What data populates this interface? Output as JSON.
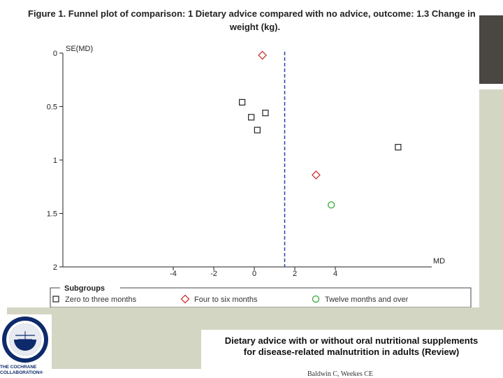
{
  "figure_title": {
    "line1": "Figure 1.   Funnel plot of comparison: 1 Dietary advice compared with no advice, outcome: 1.3 Change in",
    "line2": "weight (kg)."
  },
  "review": {
    "title_line1": "Dietary advice with or without oral nutritional supplements",
    "title_line2": "for disease-related malnutrition in adults (Review)",
    "authors": "Baldwin C, Weekes CE"
  },
  "logo": {
    "line1": "THE COCHRANE",
    "line2": "COLLABORATION®"
  },
  "colors": {
    "square": "#222222",
    "diamond": "#cc3333",
    "circle": "#33aa33",
    "dashed_line": "#2b3fb0",
    "sage": "#d4d6c4"
  },
  "chart_data": {
    "type": "scatter",
    "title": "",
    "xlabel": "MD",
    "ylabel": "SE(MD)",
    "x_ticks": [
      -4,
      -2,
      0,
      2,
      4
    ],
    "y_ticks": [
      0,
      0.5,
      1,
      1.5,
      2
    ],
    "xlim": [
      -10,
      9.5
    ],
    "ylim": [
      0,
      2
    ],
    "y_inverted": true,
    "pooled_estimate_md": 1.5,
    "legend": {
      "title": "Subgroups",
      "position": "bottom"
    },
    "series": [
      {
        "name": "Zero to three months",
        "marker": "square",
        "points": [
          {
            "x": -0.6,
            "y": 0.46
          },
          {
            "x": -0.15,
            "y": 0.6
          },
          {
            "x": 0.55,
            "y": 0.56
          },
          {
            "x": 0.15,
            "y": 0.72
          },
          {
            "x": 7.1,
            "y": 0.88
          }
        ]
      },
      {
        "name": "Four to six months",
        "marker": "diamond",
        "points": [
          {
            "x": 0.4,
            "y": 0.02
          },
          {
            "x": 3.05,
            "y": 1.14
          }
        ]
      },
      {
        "name": "Twelve months and over",
        "marker": "circle",
        "points": [
          {
            "x": 3.8,
            "y": 1.42
          }
        ]
      }
    ]
  }
}
